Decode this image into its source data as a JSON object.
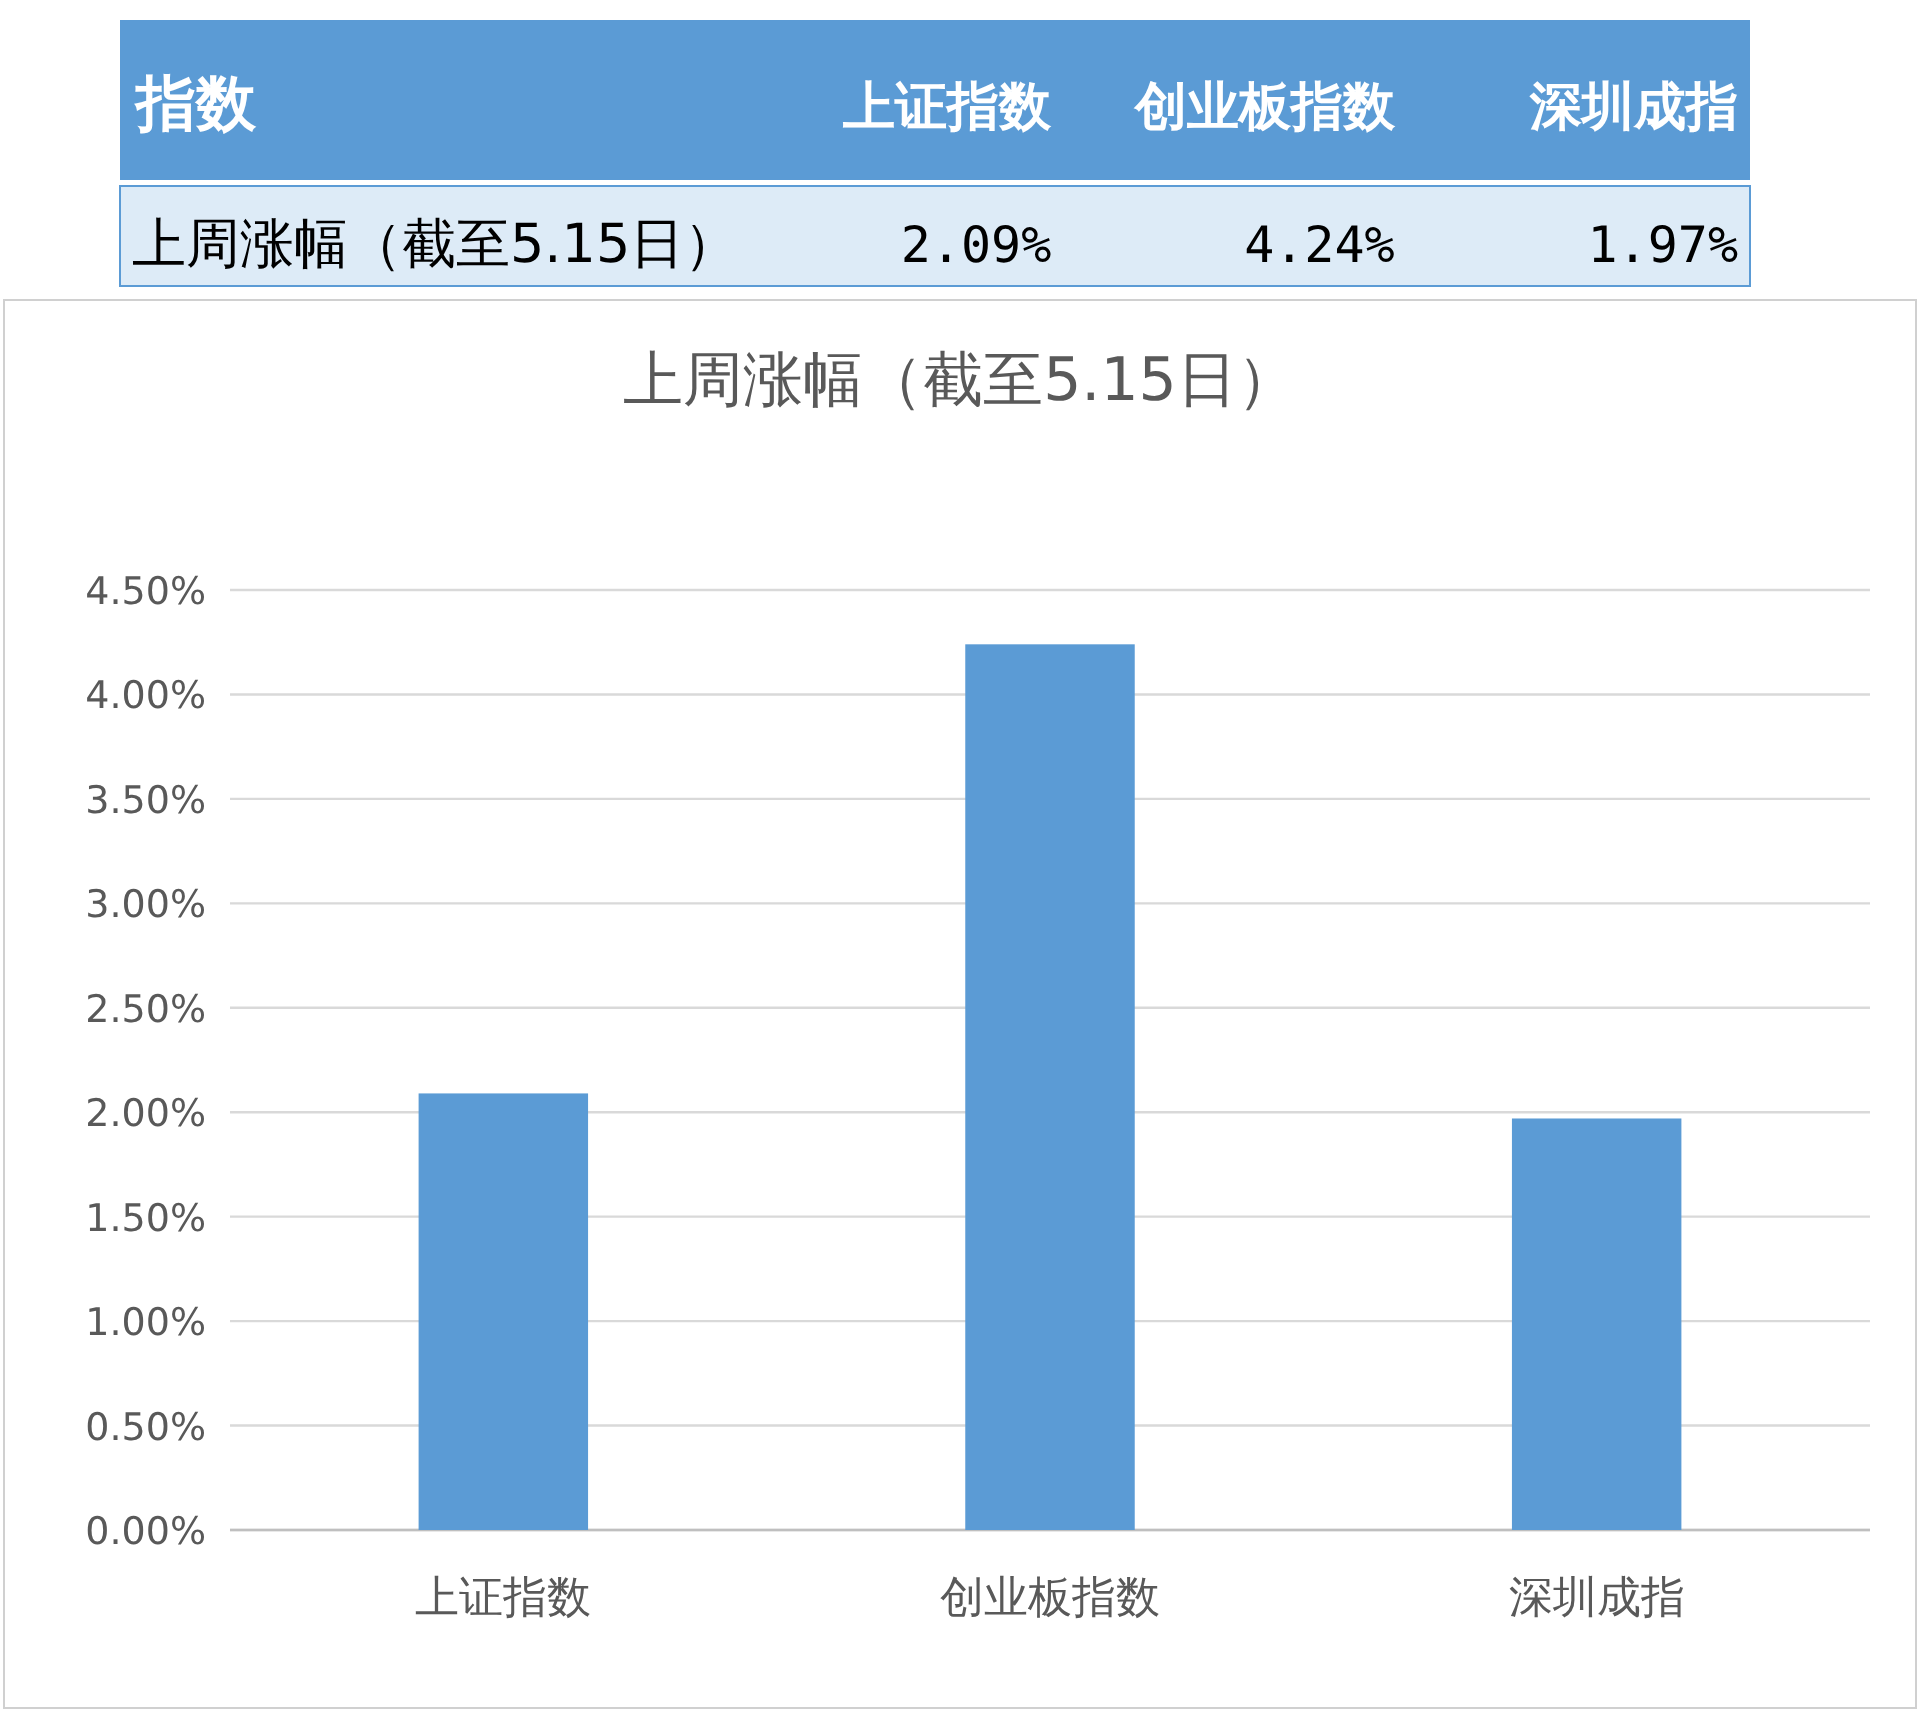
{
  "chart_data": {
    "type": "bar",
    "title": "上周涨幅（截至5.15日）",
    "categories": [
      "上证指数",
      "创业板指数",
      "深圳成指"
    ],
    "values": [
      2.09,
      4.24,
      1.97
    ],
    "color": "#5b9bd5",
    "ylim": [
      0,
      4.5
    ],
    "yticks": [
      {
        "value": 0,
        "label": "0.00%"
      },
      {
        "value": 0.5,
        "label": "0.50%"
      },
      {
        "value": 1,
        "label": "1.00%"
      },
      {
        "value": 1.5,
        "label": "1.50%"
      },
      {
        "value": 2,
        "label": "2.00%"
      },
      {
        "value": 2.5,
        "label": "2.50%"
      },
      {
        "value": 3,
        "label": "3.00%"
      },
      {
        "value": 3.5,
        "label": "3.50%"
      },
      {
        "value": 4,
        "label": "4.00%"
      },
      {
        "value": 4.5,
        "label": "4.50%"
      }
    ],
    "grid": "y",
    "annotations": [
      "指数",
      "2.09%",
      "4.24%",
      "1.97%"
    ]
  }
}
